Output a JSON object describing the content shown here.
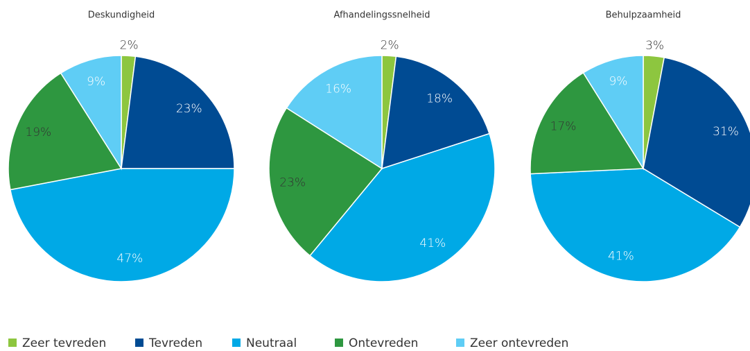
{
  "chart_data": [
    {
      "type": "pie",
      "title": "Deskundigheid",
      "values": [
        2,
        23,
        47,
        19,
        9
      ],
      "value_labels": [
        "2%",
        "23%",
        "47%",
        "19%",
        "9%"
      ]
    },
    {
      "type": "pie",
      "title": "Afhandelingssnelheid",
      "values": [
        2,
        18,
        41,
        23,
        16
      ],
      "value_labels": [
        "2%",
        "18%",
        "41%",
        "23%",
        "16%"
      ]
    },
    {
      "type": "pie",
      "title": "Behulpzaamheid",
      "values": [
        3,
        31,
        41,
        17,
        9
      ],
      "value_labels": [
        "3%",
        "31%",
        "41%",
        "17%",
        "9%"
      ]
    }
  ],
  "legend": {
    "labels": [
      "Zeer tevreden",
      "Tevreden",
      "Neutraal",
      "Ontevreden",
      "Zeer ontevreden"
    ],
    "colors": [
      "#8dc63f",
      "#004b93",
      "#00a9e6",
      "#2e9740",
      "#5fcdf5"
    ]
  }
}
